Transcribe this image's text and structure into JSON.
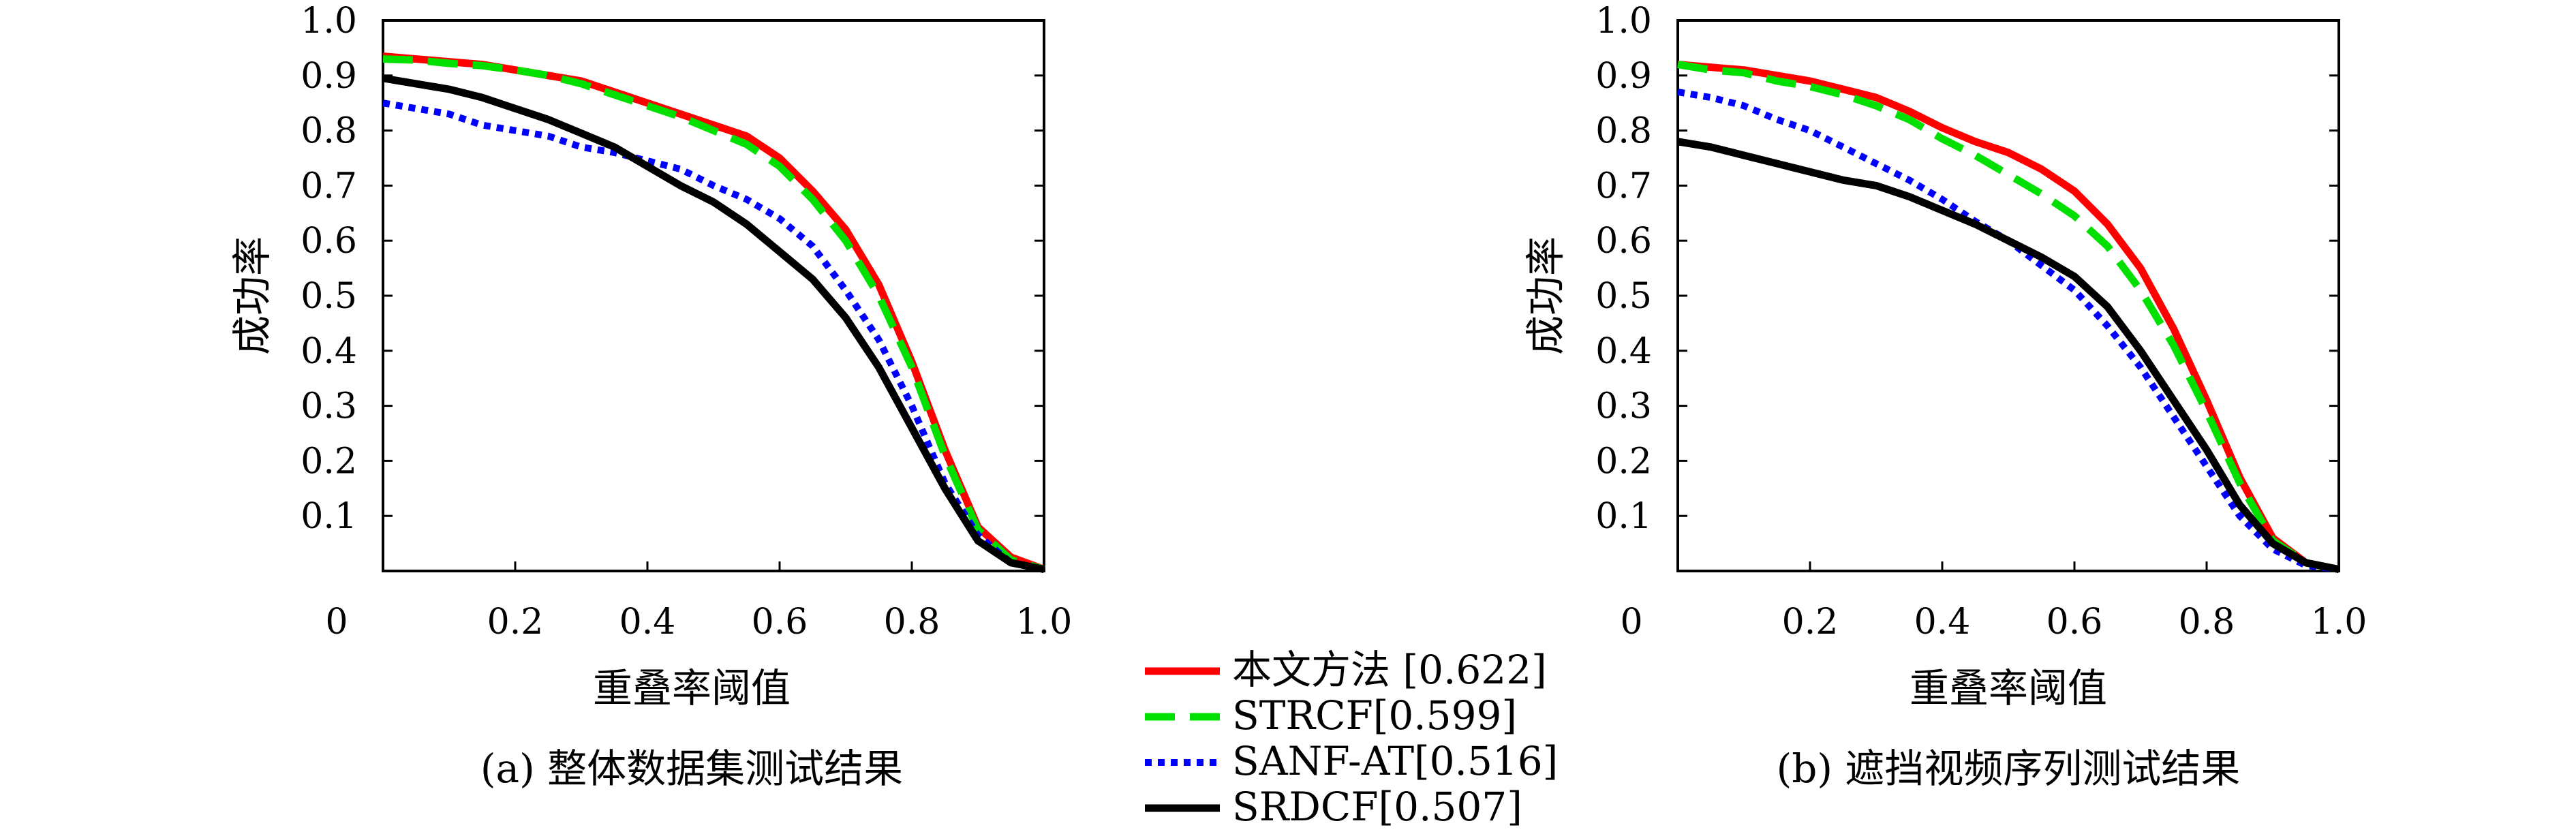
{
  "legend": [
    {
      "label": "本文方法 [0.622]",
      "color": "#ff0000",
      "dash": "solid"
    },
    {
      "label": "STRCF[0.599]",
      "color": "#00e000",
      "dash": "dashed"
    },
    {
      "label": "SANF-AT[0.516]",
      "color": "#0000ff",
      "dash": "dotted"
    },
    {
      "label": "SRDCF[0.507]",
      "color": "#000000",
      "dash": "solid"
    }
  ],
  "chart_data": [
    {
      "type": "line",
      "caption": "(a) 整体数据集测试结果",
      "xlabel": "重叠率阈值",
      "ylabel": "成功率",
      "xlim": [
        0,
        1.0
      ],
      "ylim": [
        0,
        1.0
      ],
      "x_ticks": [
        "0",
        "0.2",
        "0.4",
        "0.6",
        "0.8",
        "1.0"
      ],
      "y_ticks": [
        "1.0",
        "0.9",
        "0.8",
        "0.7",
        "0.6",
        "0.5",
        "0.4",
        "0.3",
        "0.2",
        "0.1"
      ],
      "x": [
        0,
        0.05,
        0.1,
        0.15,
        0.2,
        0.25,
        0.3,
        0.35,
        0.4,
        0.45,
        0.5,
        0.55,
        0.6,
        0.65,
        0.7,
        0.75,
        0.8,
        0.85,
        0.9,
        0.95,
        1.0
      ],
      "series": [
        {
          "name": "本文方法 [0.622]",
          "values": [
            0.935,
            0.93,
            0.925,
            0.92,
            0.91,
            0.9,
            0.89,
            0.87,
            0.85,
            0.83,
            0.81,
            0.79,
            0.75,
            0.69,
            0.62,
            0.52,
            0.38,
            0.22,
            0.08,
            0.025,
            0.003
          ]
        },
        {
          "name": "STRCF[0.599]",
          "values": [
            0.93,
            0.928,
            0.922,
            0.918,
            0.91,
            0.9,
            0.885,
            0.865,
            0.845,
            0.825,
            0.8,
            0.775,
            0.735,
            0.675,
            0.6,
            0.5,
            0.37,
            0.21,
            0.075,
            0.02,
            0.003
          ]
        },
        {
          "name": "SANF-AT[0.516]",
          "values": [
            0.85,
            0.84,
            0.83,
            0.81,
            0.8,
            0.79,
            0.77,
            0.76,
            0.745,
            0.73,
            0.7,
            0.675,
            0.64,
            0.59,
            0.51,
            0.42,
            0.3,
            0.16,
            0.065,
            0.015,
            0.003
          ]
        },
        {
          "name": "SRDCF[0.507]",
          "values": [
            0.895,
            0.885,
            0.875,
            0.86,
            0.84,
            0.82,
            0.795,
            0.77,
            0.735,
            0.7,
            0.67,
            0.63,
            0.58,
            0.53,
            0.46,
            0.37,
            0.26,
            0.15,
            0.055,
            0.015,
            0.003
          ]
        }
      ]
    },
    {
      "type": "line",
      "caption": "(b) 遮挡视频序列测试结果",
      "xlabel": "重叠率阈值",
      "ylabel": "成功率",
      "xlim": [
        0,
        1.0
      ],
      "ylim": [
        0,
        1.0
      ],
      "x_ticks": [
        "0",
        "0.2",
        "0.4",
        "0.6",
        "0.8",
        "1.0"
      ],
      "y_ticks": [
        "1.0",
        "0.9",
        "0.8",
        "0.7",
        "0.6",
        "0.5",
        "0.4",
        "0.3",
        "0.2",
        "0.1"
      ],
      "x": [
        0,
        0.05,
        0.1,
        0.15,
        0.2,
        0.25,
        0.3,
        0.35,
        0.4,
        0.45,
        0.5,
        0.55,
        0.6,
        0.65,
        0.7,
        0.75,
        0.8,
        0.85,
        0.9,
        0.95,
        1.0
      ],
      "series": [
        {
          "name": "本文方法 [0.622]",
          "values": [
            0.92,
            0.915,
            0.91,
            0.9,
            0.89,
            0.875,
            0.86,
            0.835,
            0.805,
            0.78,
            0.76,
            0.73,
            0.69,
            0.63,
            0.55,
            0.44,
            0.31,
            0.17,
            0.06,
            0.015,
            0.003
          ]
        },
        {
          "name": "STRCF[0.599]",
          "values": [
            0.92,
            0.91,
            0.905,
            0.89,
            0.88,
            0.865,
            0.845,
            0.82,
            0.785,
            0.755,
            0.72,
            0.685,
            0.645,
            0.59,
            0.51,
            0.41,
            0.29,
            0.16,
            0.055,
            0.015,
            0.003
          ]
        },
        {
          "name": "SANF-AT[0.516]",
          "values": [
            0.87,
            0.86,
            0.845,
            0.82,
            0.8,
            0.77,
            0.74,
            0.71,
            0.675,
            0.635,
            0.6,
            0.555,
            0.51,
            0.445,
            0.37,
            0.28,
            0.19,
            0.1,
            0.04,
            0.01,
            0.003
          ]
        },
        {
          "name": "SRDCF[0.507]",
          "values": [
            0.78,
            0.77,
            0.755,
            0.74,
            0.725,
            0.71,
            0.7,
            0.68,
            0.655,
            0.63,
            0.6,
            0.57,
            0.535,
            0.48,
            0.4,
            0.31,
            0.22,
            0.12,
            0.05,
            0.015,
            0.003
          ]
        }
      ]
    }
  ]
}
